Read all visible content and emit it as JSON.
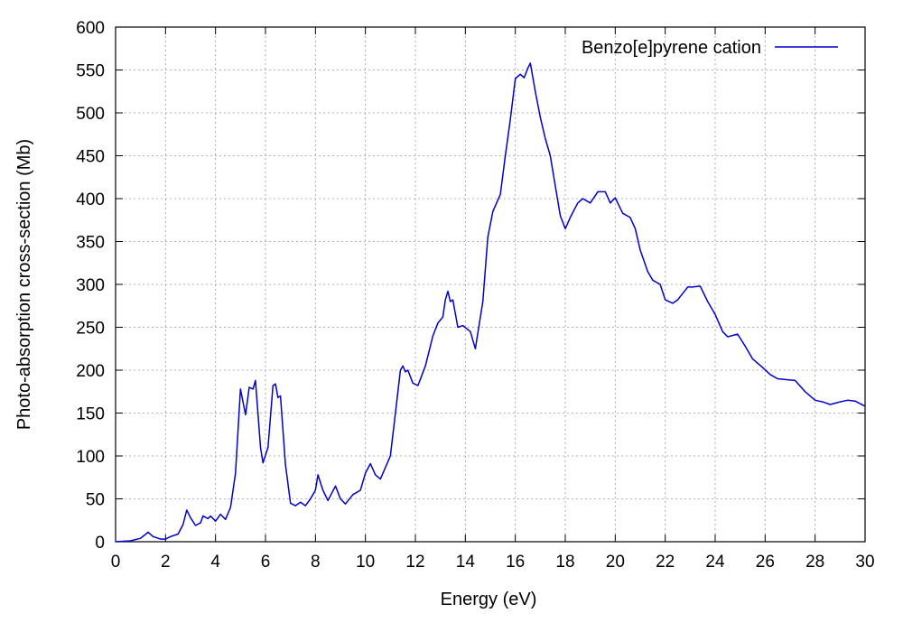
{
  "chart_data": {
    "type": "line",
    "xlabel": "Energy (eV)",
    "ylabel": "Photo-absorption cross-section (Mb)",
    "xlim": [
      0,
      30
    ],
    "ylim": [
      0,
      600
    ],
    "xticks": [
      0,
      2,
      4,
      6,
      8,
      10,
      12,
      14,
      16,
      18,
      20,
      22,
      24,
      26,
      28,
      30
    ],
    "yticks": [
      0,
      50,
      100,
      150,
      200,
      250,
      300,
      350,
      400,
      450,
      500,
      550,
      600
    ],
    "grid": true,
    "legend_position": "top-right",
    "series": [
      {
        "name": "Benzo[e]pyrene cation",
        "color": "#0000cc",
        "points": [
          [
            0.0,
            0
          ],
          [
            0.6,
            1
          ],
          [
            1.0,
            4
          ],
          [
            1.3,
            11
          ],
          [
            1.5,
            6
          ],
          [
            1.8,
            3
          ],
          [
            2.0,
            3
          ],
          [
            2.2,
            6
          ],
          [
            2.5,
            9
          ],
          [
            2.7,
            20
          ],
          [
            2.85,
            37
          ],
          [
            3.0,
            28
          ],
          [
            3.2,
            19
          ],
          [
            3.4,
            22
          ],
          [
            3.5,
            30
          ],
          [
            3.7,
            27
          ],
          [
            3.8,
            30
          ],
          [
            4.0,
            24
          ],
          [
            4.2,
            32
          ],
          [
            4.4,
            26
          ],
          [
            4.6,
            40
          ],
          [
            4.8,
            80
          ],
          [
            5.0,
            178
          ],
          [
            5.2,
            148
          ],
          [
            5.35,
            180
          ],
          [
            5.5,
            178
          ],
          [
            5.6,
            188
          ],
          [
            5.8,
            110
          ],
          [
            5.9,
            92
          ],
          [
            6.1,
            110
          ],
          [
            6.3,
            182
          ],
          [
            6.4,
            184
          ],
          [
            6.5,
            168
          ],
          [
            6.6,
            170
          ],
          [
            6.8,
            90
          ],
          [
            7.0,
            45
          ],
          [
            7.2,
            42
          ],
          [
            7.4,
            46
          ],
          [
            7.6,
            42
          ],
          [
            7.8,
            50
          ],
          [
            8.0,
            60
          ],
          [
            8.1,
            78
          ],
          [
            8.3,
            60
          ],
          [
            8.5,
            48
          ],
          [
            8.8,
            65
          ],
          [
            9.0,
            50
          ],
          [
            9.2,
            44
          ],
          [
            9.5,
            55
          ],
          [
            9.8,
            60
          ],
          [
            10.0,
            80
          ],
          [
            10.2,
            91
          ],
          [
            10.4,
            78
          ],
          [
            10.6,
            73
          ],
          [
            11.0,
            100
          ],
          [
            11.2,
            150
          ],
          [
            11.4,
            200
          ],
          [
            11.5,
            205
          ],
          [
            11.6,
            198
          ],
          [
            11.7,
            200
          ],
          [
            11.9,
            185
          ],
          [
            12.1,
            182
          ],
          [
            12.4,
            205
          ],
          [
            12.7,
            240
          ],
          [
            12.9,
            255
          ],
          [
            13.1,
            262
          ],
          [
            13.2,
            282
          ],
          [
            13.3,
            292
          ],
          [
            13.4,
            280
          ],
          [
            13.5,
            282
          ],
          [
            13.7,
            250
          ],
          [
            13.9,
            252
          ],
          [
            14.2,
            245
          ],
          [
            14.4,
            225
          ],
          [
            14.7,
            280
          ],
          [
            14.9,
            355
          ],
          [
            15.1,
            385
          ],
          [
            15.4,
            405
          ],
          [
            15.6,
            450
          ],
          [
            15.8,
            492
          ],
          [
            16.0,
            540
          ],
          [
            16.2,
            545
          ],
          [
            16.35,
            541
          ],
          [
            16.5,
            552
          ],
          [
            16.6,
            558
          ],
          [
            16.8,
            525
          ],
          [
            17.0,
            495
          ],
          [
            17.2,
            470
          ],
          [
            17.4,
            450
          ],
          [
            17.6,
            415
          ],
          [
            17.8,
            380
          ],
          [
            18.0,
            365
          ],
          [
            18.2,
            378
          ],
          [
            18.5,
            395
          ],
          [
            18.7,
            400
          ],
          [
            19.0,
            395
          ],
          [
            19.3,
            408
          ],
          [
            19.6,
            408
          ],
          [
            19.8,
            395
          ],
          [
            20.0,
            401
          ],
          [
            20.3,
            383
          ],
          [
            20.6,
            378
          ],
          [
            20.8,
            365
          ],
          [
            21.0,
            340
          ],
          [
            21.3,
            315
          ],
          [
            21.5,
            305
          ],
          [
            21.8,
            300
          ],
          [
            22.0,
            282
          ],
          [
            22.3,
            278
          ],
          [
            22.5,
            282
          ],
          [
            22.9,
            297
          ],
          [
            23.1,
            297
          ],
          [
            23.4,
            298
          ],
          [
            23.7,
            280
          ],
          [
            24.0,
            265
          ],
          [
            24.3,
            245
          ],
          [
            24.5,
            239
          ],
          [
            24.9,
            242
          ],
          [
            25.2,
            228
          ],
          [
            25.5,
            213
          ],
          [
            25.9,
            203
          ],
          [
            26.2,
            195
          ],
          [
            26.5,
            190
          ],
          [
            26.8,
            189
          ],
          [
            27.2,
            188
          ],
          [
            27.6,
            175
          ],
          [
            28.0,
            165
          ],
          [
            28.3,
            163
          ],
          [
            28.6,
            160
          ],
          [
            29.0,
            163
          ],
          [
            29.3,
            165
          ],
          [
            29.6,
            164
          ],
          [
            30.0,
            158
          ]
        ]
      }
    ]
  }
}
